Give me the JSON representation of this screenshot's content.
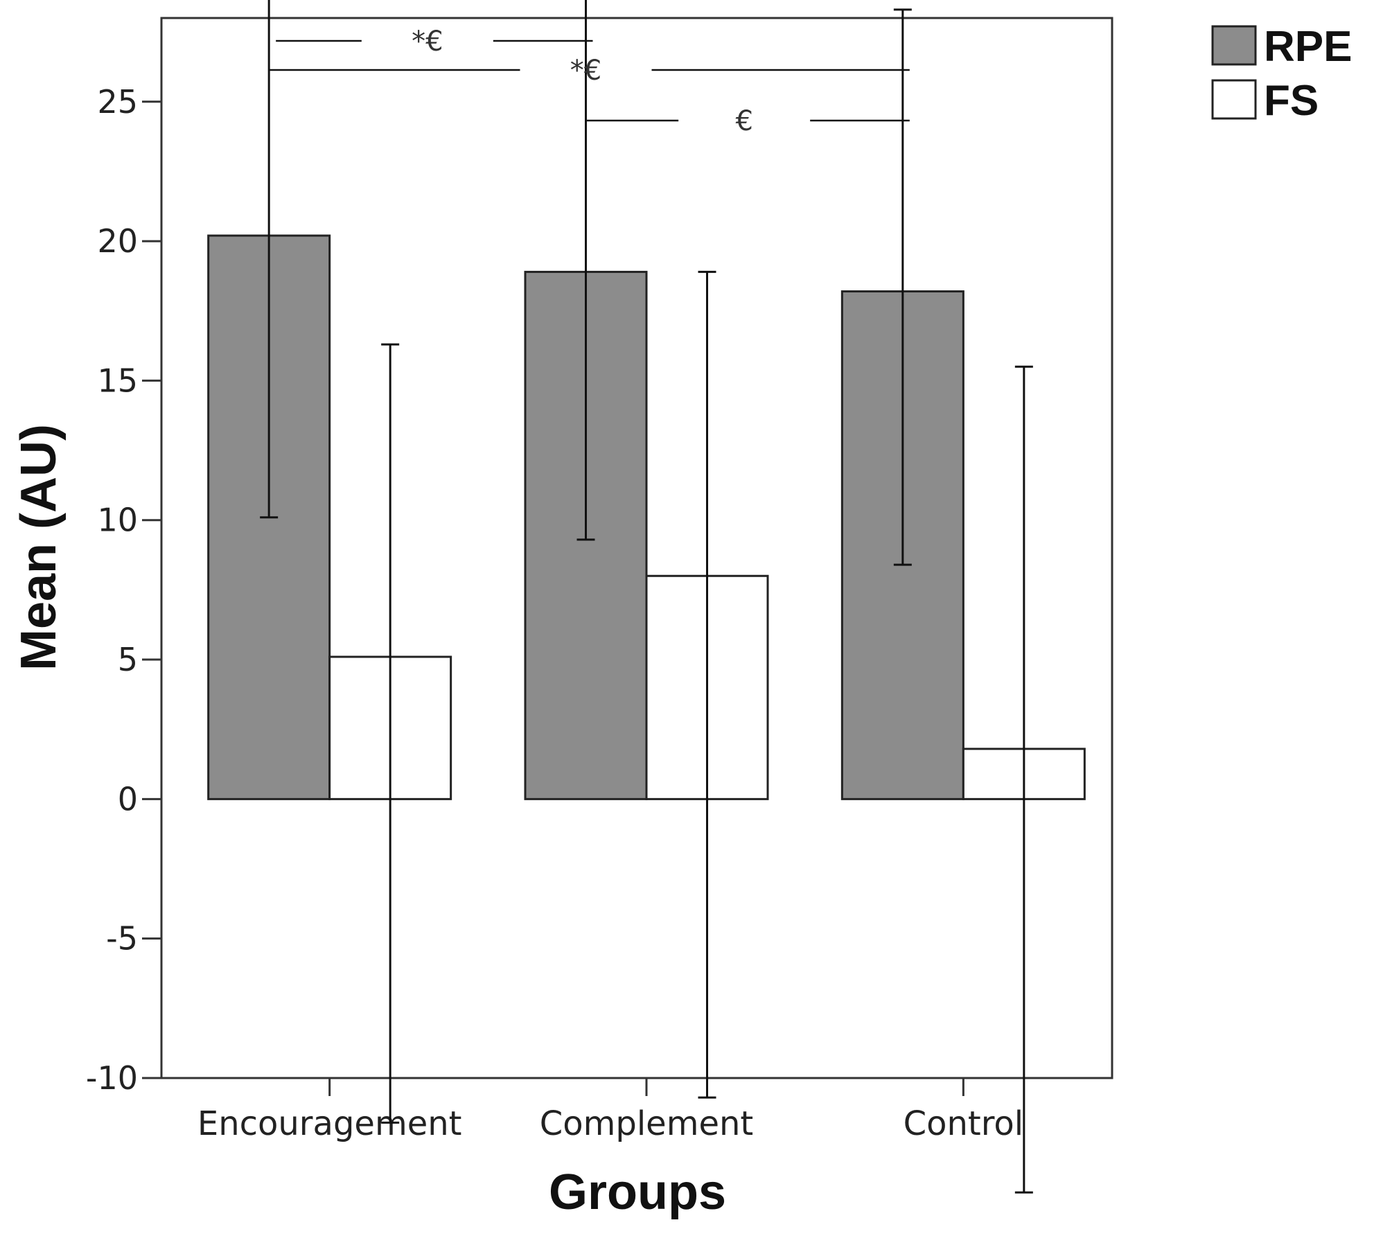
{
  "chart_data": {
    "type": "bar",
    "title": "",
    "xlabel": "Groups",
    "ylabel": "Mean (AU)",
    "ylim": [
      -10,
      28
    ],
    "yticks": [
      "-10",
      "-5",
      "0",
      "5",
      "10",
      "15",
      "20",
      "25"
    ],
    "categories": [
      "Encouragement",
      "Complement",
      "Control"
    ],
    "series": [
      {
        "name": "RPE",
        "color": "#8c8c8c",
        "values": [
          20.2,
          18.9,
          18.2
        ],
        "error_low": [
          10.1,
          9.3,
          8.4
        ],
        "error_high": [
          30.5,
          28.7,
          28.3
        ]
      },
      {
        "name": "FS",
        "color": "#ffffff",
        "values": [
          5.1,
          8.0,
          1.8
        ],
        "error_low": [
          -11.6,
          -10.7,
          -14.1
        ],
        "error_high": [
          16.3,
          18.9,
          15.5
        ]
      }
    ],
    "legend_position": "top-right",
    "grid": false,
    "significance": [
      {
        "label": "*€",
        "from": "Encouragement",
        "to": "Complement"
      },
      {
        "label": "*€",
        "from": "Encouragement",
        "to": "Control"
      },
      {
        "label": "€",
        "from": "Complement",
        "to": "Control"
      }
    ]
  }
}
